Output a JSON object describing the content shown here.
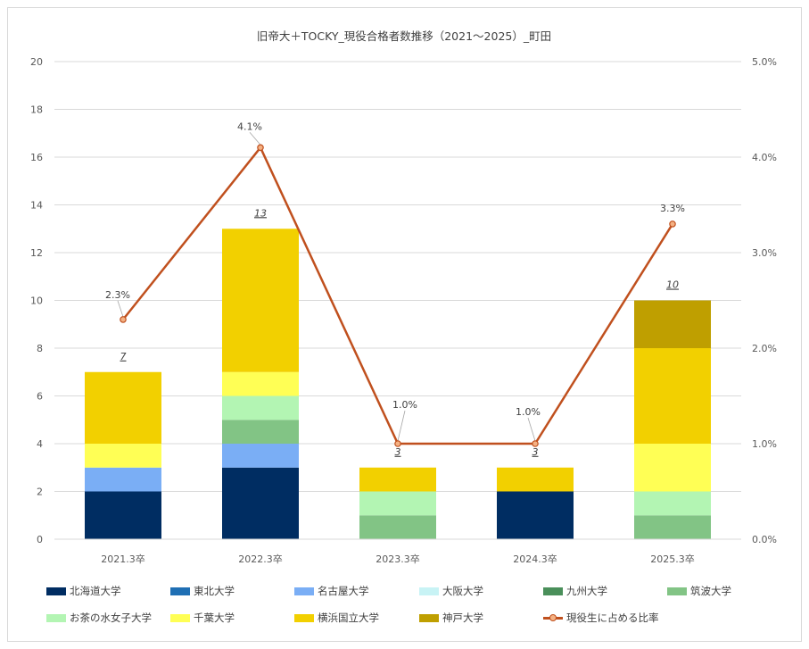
{
  "chart_data": {
    "type": "bar",
    "stacked": true,
    "title": "旧帝大＋TOCKY_現役合格者数推移（2021～2025）_町田",
    "categories": [
      "2021.3卒",
      "2022.3卒",
      "2023.3卒",
      "2024.3卒",
      "2025.3卒"
    ],
    "ylim": [
      0,
      20
    ],
    "yticks": [
      "0",
      "2",
      "4",
      "6",
      "8",
      "10",
      "12",
      "14",
      "16",
      "18",
      "20"
    ],
    "y2lim": [
      0,
      5.0
    ],
    "y2ticks": [
      "0.0%",
      "1.0%",
      "2.0%",
      "3.0%",
      "4.0%",
      "5.0%"
    ],
    "grid": true,
    "legend_position": "bottom",
    "series": [
      {
        "name": "北海道大学",
        "color": "#002d62",
        "values": [
          2,
          3,
          0,
          2,
          0
        ]
      },
      {
        "name": "東北大学",
        "color": "#1f6fb4",
        "values": [
          0,
          0,
          0,
          0,
          0
        ]
      },
      {
        "name": "名古屋大学",
        "color": "#7aaef5",
        "values": [
          1,
          1,
          0,
          0,
          0
        ]
      },
      {
        "name": "大阪大学",
        "color": "#c8f3f5",
        "values": [
          0,
          0,
          0,
          0,
          0
        ]
      },
      {
        "name": "九州大学",
        "color": "#4a8f5a",
        "values": [
          0,
          0,
          0,
          0,
          0
        ]
      },
      {
        "name": "筑波大学",
        "color": "#82c485",
        "values": [
          0,
          1,
          1,
          0,
          1
        ]
      },
      {
        "name": "お茶の水女子大学",
        "color": "#b3f5b3",
        "values": [
          0,
          1,
          1,
          0,
          1
        ]
      },
      {
        "name": "千葉大学",
        "color": "#ffff55",
        "values": [
          1,
          1,
          0,
          0,
          2
        ]
      },
      {
        "name": "横浜国立大学",
        "color": "#f2d000",
        "values": [
          3,
          6,
          1,
          1,
          4
        ]
      },
      {
        "name": "神戸大学",
        "color": "#bf9f00",
        "values": [
          0,
          0,
          0,
          0,
          2
        ]
      }
    ],
    "totals": [
      "7",
      "13",
      "3",
      "3",
      "10"
    ],
    "line_series": {
      "name": "現役生に占める比率",
      "color": "#c0501e",
      "values": [
        2.3,
        4.1,
        1.0,
        1.0,
        3.3
      ],
      "labels": [
        "2.3%",
        "4.1%",
        "1.0%",
        "1.0%",
        "3.3%"
      ]
    }
  }
}
